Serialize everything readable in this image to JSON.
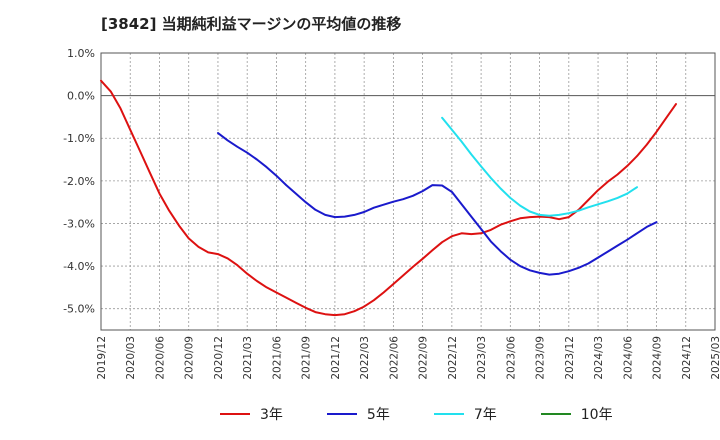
{
  "title": "[3842]  当期純利益マージンの平均値の推移",
  "chart_data": {
    "type": "line",
    "xlabel": "",
    "ylabel": "",
    "ylim": [
      -5.5,
      1.0
    ],
    "y_ticks": [
      1.0,
      0.0,
      -1.0,
      -2.0,
      -3.0,
      -4.0,
      -5.0
    ],
    "y_tick_labels": [
      "1.0%",
      "0.0%",
      "-1.0%",
      "-2.0%",
      "-3.0%",
      "-4.0%",
      "-5.0%"
    ],
    "x_ticks": [
      "2019/12",
      "2020/03",
      "2020/06",
      "2020/09",
      "2020/12",
      "2021/03",
      "2021/06",
      "2021/09",
      "2021/12",
      "2022/03",
      "2022/06",
      "2022/09",
      "2022/12",
      "2023/03",
      "2023/06",
      "2023/09",
      "2023/12",
      "2024/03",
      "2024/06",
      "2024/09",
      "2024/12",
      "2025/03"
    ],
    "grid": true,
    "legend_position": "bottom",
    "series": [
      {
        "name": "3年",
        "color": "#dd1111",
        "points": [
          [
            "2019/12",
            0.35
          ],
          [
            "2020/01",
            0.1
          ],
          [
            "2020/02",
            -0.3
          ],
          [
            "2020/03",
            -0.8
          ],
          [
            "2020/04",
            -1.3
          ],
          [
            "2020/05",
            -1.8
          ],
          [
            "2020/06",
            -2.3
          ],
          [
            "2020/07",
            -2.7
          ],
          [
            "2020/08",
            -3.05
          ],
          [
            "2020/09",
            -3.35
          ],
          [
            "2020/10",
            -3.55
          ],
          [
            "2020/11",
            -3.68
          ],
          [
            "2020/12",
            -3.72
          ],
          [
            "2021/01",
            -3.82
          ],
          [
            "2021/02",
            -3.98
          ],
          [
            "2021/03",
            -4.18
          ],
          [
            "2021/04",
            -4.35
          ],
          [
            "2021/05",
            -4.5
          ],
          [
            "2021/06",
            -4.62
          ],
          [
            "2021/07",
            -4.74
          ],
          [
            "2021/08",
            -4.86
          ],
          [
            "2021/09",
            -4.98
          ],
          [
            "2021/10",
            -5.08
          ],
          [
            "2021/11",
            -5.13
          ],
          [
            "2021/12",
            -5.15
          ],
          [
            "2022/01",
            -5.13
          ],
          [
            "2022/02",
            -5.06
          ],
          [
            "2022/03",
            -4.95
          ],
          [
            "2022/04",
            -4.8
          ],
          [
            "2022/05",
            -4.62
          ],
          [
            "2022/06",
            -4.42
          ],
          [
            "2022/07",
            -4.22
          ],
          [
            "2022/08",
            -4.02
          ],
          [
            "2022/09",
            -3.83
          ],
          [
            "2022/10",
            -3.63
          ],
          [
            "2022/11",
            -3.44
          ],
          [
            "2022/12",
            -3.3
          ],
          [
            "2023/01",
            -3.23
          ],
          [
            "2023/02",
            -3.25
          ],
          [
            "2023/03",
            -3.23
          ],
          [
            "2023/04",
            -3.15
          ],
          [
            "2023/05",
            -3.03
          ],
          [
            "2023/06",
            -2.95
          ],
          [
            "2023/07",
            -2.88
          ],
          [
            "2023/08",
            -2.85
          ],
          [
            "2023/09",
            -2.84
          ],
          [
            "2023/10",
            -2.85
          ],
          [
            "2023/11",
            -2.9
          ],
          [
            "2023/12",
            -2.85
          ],
          [
            "2024/01",
            -2.68
          ],
          [
            "2024/02",
            -2.45
          ],
          [
            "2024/03",
            -2.22
          ],
          [
            "2024/04",
            -2.02
          ],
          [
            "2024/05",
            -1.85
          ],
          [
            "2024/06",
            -1.65
          ],
          [
            "2024/07",
            -1.42
          ],
          [
            "2024/08",
            -1.15
          ],
          [
            "2024/09",
            -0.85
          ],
          [
            "2024/10",
            -0.52
          ],
          [
            "2024/11",
            -0.2
          ]
        ]
      },
      {
        "name": "5年",
        "color": "#1a1acc",
        "points": [
          [
            "2020/12",
            -0.88
          ],
          [
            "2021/01",
            -1.05
          ],
          [
            "2021/02",
            -1.2
          ],
          [
            "2021/03",
            -1.34
          ],
          [
            "2021/04",
            -1.5
          ],
          [
            "2021/05",
            -1.68
          ],
          [
            "2021/06",
            -1.88
          ],
          [
            "2021/07",
            -2.1
          ],
          [
            "2021/08",
            -2.3
          ],
          [
            "2021/09",
            -2.5
          ],
          [
            "2021/10",
            -2.68
          ],
          [
            "2021/11",
            -2.8
          ],
          [
            "2021/12",
            -2.85
          ],
          [
            "2022/01",
            -2.84
          ],
          [
            "2022/02",
            -2.8
          ],
          [
            "2022/03",
            -2.73
          ],
          [
            "2022/04",
            -2.63
          ],
          [
            "2022/05",
            -2.56
          ],
          [
            "2022/06",
            -2.49
          ],
          [
            "2022/07",
            -2.43
          ],
          [
            "2022/08",
            -2.35
          ],
          [
            "2022/09",
            -2.24
          ],
          [
            "2022/10",
            -2.1
          ],
          [
            "2022/11",
            -2.11
          ],
          [
            "2022/12",
            -2.26
          ],
          [
            "2023/01",
            -2.55
          ],
          [
            "2023/02",
            -2.84
          ],
          [
            "2023/03",
            -3.13
          ],
          [
            "2023/04",
            -3.42
          ],
          [
            "2023/05",
            -3.65
          ],
          [
            "2023/06",
            -3.85
          ],
          [
            "2023/07",
            -4.0
          ],
          [
            "2023/08",
            -4.1
          ],
          [
            "2023/09",
            -4.16
          ],
          [
            "2023/10",
            -4.2
          ],
          [
            "2023/11",
            -4.18
          ],
          [
            "2023/12",
            -4.12
          ],
          [
            "2024/01",
            -4.04
          ],
          [
            "2024/02",
            -3.94
          ],
          [
            "2024/03",
            -3.8
          ],
          [
            "2024/04",
            -3.66
          ],
          [
            "2024/05",
            -3.52
          ],
          [
            "2024/06",
            -3.38
          ],
          [
            "2024/07",
            -3.23
          ],
          [
            "2024/08",
            -3.08
          ],
          [
            "2024/09",
            -2.97
          ]
        ]
      },
      {
        "name": "7年",
        "color": "#22e0ee",
        "points": [
          [
            "2022/11",
            -0.52
          ],
          [
            "2022/12",
            -0.8
          ],
          [
            "2023/01",
            -1.08
          ],
          [
            "2023/02",
            -1.38
          ],
          [
            "2023/03",
            -1.66
          ],
          [
            "2023/04",
            -1.93
          ],
          [
            "2023/05",
            -2.18
          ],
          [
            "2023/06",
            -2.4
          ],
          [
            "2023/07",
            -2.58
          ],
          [
            "2023/08",
            -2.72
          ],
          [
            "2023/09",
            -2.8
          ],
          [
            "2023/10",
            -2.82
          ],
          [
            "2023/11",
            -2.8
          ],
          [
            "2023/12",
            -2.76
          ],
          [
            "2024/01",
            -2.7
          ],
          [
            "2024/02",
            -2.62
          ],
          [
            "2024/03",
            -2.55
          ],
          [
            "2024/04",
            -2.48
          ],
          [
            "2024/05",
            -2.4
          ],
          [
            "2024/06",
            -2.3
          ],
          [
            "2024/07",
            -2.15
          ]
        ]
      },
      {
        "name": "10年",
        "color": "#228822",
        "points": []
      }
    ]
  }
}
